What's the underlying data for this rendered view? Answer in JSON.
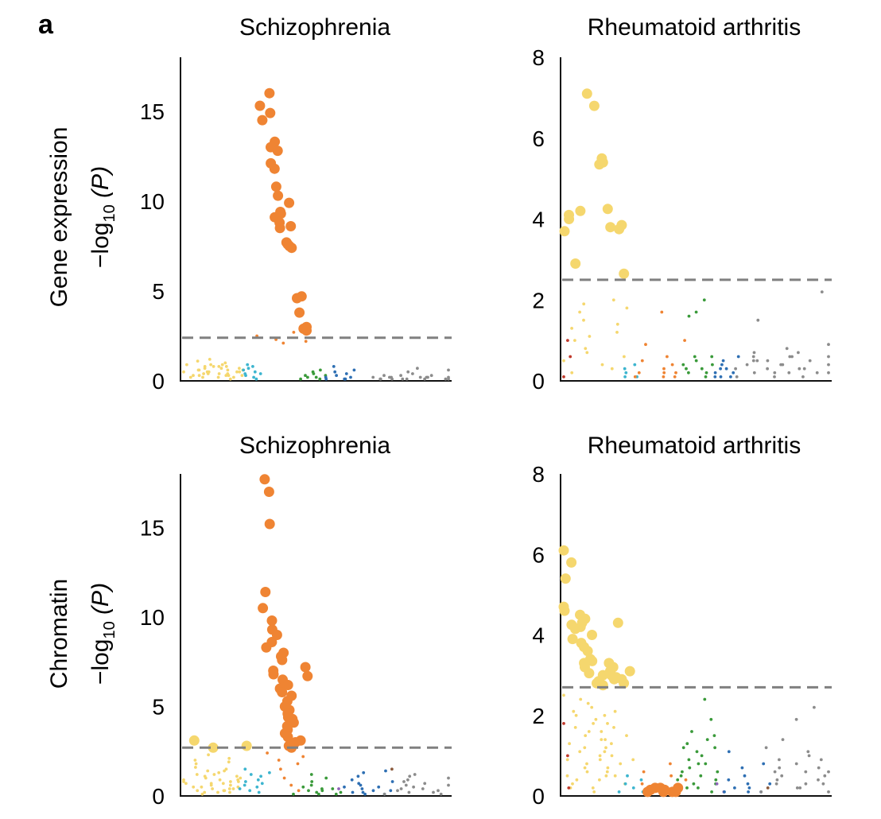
{
  "panel_letter": "a",
  "row_labels": [
    "Gene expression",
    "Chromatin"
  ],
  "ylabel": {
    "prefix": "−log",
    "sub": "10",
    "suffix": " (P)"
  },
  "colors": {
    "yellow": "#f5d76e",
    "orange": "#ef8433",
    "cyan": "#3db5cf",
    "green": "#3a9a3a",
    "blue": "#2e6fb3",
    "gray": "#8c8c8c",
    "red": "#c0392b",
    "purple": "#8e63b8",
    "brown": "#8b5a3c",
    "threshold": "#808080"
  },
  "chart_data": [
    {
      "type": "scatter",
      "title": "Schizophrenia",
      "row": "Gene expression",
      "ylim": [
        0,
        18
      ],
      "yticks": [
        0,
        5,
        10,
        15
      ],
      "threshold": 2.4,
      "series": [
        {
          "name": "yellow-small",
          "color": "yellow",
          "size": "small",
          "x_range": [
            0.01,
            0.22
          ],
          "values": [
            0.2,
            0.5,
            0.3,
            0.8,
            1.1,
            0.6,
            0.9,
            0.4,
            0.7,
            1.2,
            0.5,
            0.3,
            0.8,
            0.6,
            0.9,
            0.2,
            0.4,
            0.7,
            1.0,
            0.3,
            0.5,
            0.8,
            0.6,
            0.4,
            0.2,
            0.9,
            0.7,
            0.5,
            0.3,
            0.1,
            0.6,
            0.8,
            0.4,
            0.2,
            0.5,
            0.3
          ]
        },
        {
          "name": "cyan-small",
          "color": "cyan",
          "size": "small",
          "x_range": [
            0.22,
            0.28
          ],
          "values": [
            0.3,
            0.6,
            0.9,
            0.4,
            0.7,
            0.2,
            0.5,
            0.8,
            0.1,
            0.4
          ]
        },
        {
          "name": "orange-large",
          "color": "orange",
          "size": "large",
          "x_range": [
            0.31,
            0.45
          ],
          "values": [
            16.0,
            15.3,
            14.9,
            14.5,
            13.3,
            13.0,
            12.8,
            12.1,
            11.8,
            10.8,
            10.3,
            9.9,
            9.3,
            9.1,
            9.4,
            8.8,
            8.6,
            8.5,
            7.7,
            7.6,
            7.4,
            7.5,
            4.7,
            4.6,
            3.8,
            3.0,
            2.9,
            2.8
          ]
        },
        {
          "name": "orange-small",
          "color": "orange",
          "size": "small",
          "x_range": [
            0.31,
            0.45
          ],
          "values": [
            2.5,
            2.3,
            2.1,
            2.7,
            2.2
          ]
        },
        {
          "name": "green-small",
          "color": "green",
          "size": "small",
          "x_range": [
            0.45,
            0.53
          ],
          "values": [
            0.1,
            0.3,
            0.5,
            0.2,
            0.4,
            0.6,
            0.1,
            0.2,
            0.3
          ]
        },
        {
          "name": "blue-small",
          "color": "blue",
          "size": "small",
          "x_range": [
            0.53,
            0.64
          ],
          "values": [
            0.1,
            0.2,
            0.5,
            0.3,
            0.8,
            0.1,
            0.2,
            0.4,
            0.1,
            0.6
          ]
        },
        {
          "name": "gray-small",
          "color": "gray",
          "size": "small",
          "x_range": [
            0.72,
            1.0
          ],
          "values": [
            0.1,
            0.2,
            0.3,
            0.1,
            0.2,
            0.5,
            0.1,
            0.2,
            0.3,
            0.7,
            0.1,
            0.2,
            0.1,
            0.3,
            0.2,
            0.1,
            0.4,
            0.2,
            0.1,
            0.6,
            0.2,
            0.1
          ]
        }
      ]
    },
    {
      "type": "scatter",
      "title": "Rheumatoid arthritis",
      "row": "Gene expression",
      "ylim": [
        0,
        8
      ],
      "yticks": [
        0,
        2,
        4,
        6,
        8
      ],
      "threshold": 2.5,
      "series": [
        {
          "name": "yellow-large",
          "color": "yellow",
          "size": "large",
          "x_range": [
            0.01,
            0.22
          ],
          "values": [
            4.1,
            4.2,
            4.0,
            3.7,
            2.9,
            7.1,
            6.8,
            5.35,
            5.4,
            5.5,
            3.8,
            3.85,
            3.75,
            4.25,
            2.65
          ]
        },
        {
          "name": "yellow-small",
          "color": "yellow",
          "size": "small",
          "x_range": [
            0.01,
            0.22
          ],
          "values": [
            0.5,
            1.0,
            1.3,
            0.2,
            0.8,
            1.7,
            1.9,
            1.5,
            1.1,
            0.7,
            0.4,
            1.4,
            2.0,
            0.3,
            0.6,
            1.8,
            1.2
          ]
        },
        {
          "name": "red-small",
          "color": "red",
          "size": "small",
          "x_range": [
            0.0,
            0.03
          ],
          "values": [
            0.1,
            1.0,
            0.6
          ]
        },
        {
          "name": "cyan-small",
          "color": "cyan",
          "size": "small",
          "x_range": [
            0.22,
            0.28
          ],
          "values": [
            0.1,
            0.3,
            0.2,
            0.4,
            0.1
          ]
        },
        {
          "name": "orange-small",
          "color": "orange",
          "size": "small",
          "x_range": [
            0.3,
            0.45
          ],
          "values": [
            0.1,
            0.2,
            0.5,
            0.9,
            1.7,
            0.3,
            0.6,
            0.1,
            0.2,
            0.4,
            1.0,
            0.2,
            0.1
          ]
        },
        {
          "name": "green-small",
          "color": "green",
          "size": "small",
          "x_range": [
            0.45,
            0.56
          ],
          "values": [
            0.2,
            0.4,
            0.6,
            0.3,
            1.6,
            1.7,
            2.0,
            0.5,
            0.1,
            0.3,
            0.6,
            0.2,
            0.4
          ]
        },
        {
          "name": "blue-small",
          "color": "blue",
          "size": "small",
          "x_range": [
            0.56,
            0.66
          ],
          "values": [
            0.1,
            0.2,
            0.3,
            0.5,
            0.1,
            0.4,
            0.2,
            0.3,
            0.1,
            0.6
          ]
        },
        {
          "name": "gray-small",
          "color": "gray",
          "size": "small",
          "x_range": [
            0.66,
            1.0
          ],
          "values": [
            0.1,
            0.3,
            0.5,
            0.6,
            0.2,
            0.4,
            0.7,
            0.5,
            0.3,
            1.5,
            0.2,
            0.6,
            0.4,
            0.1,
            0.3,
            0.2,
            0.5,
            0.8,
            0.6,
            0.2,
            2.2,
            0.4,
            0.1,
            0.3,
            0.7,
            0.9,
            0.5,
            0.2,
            0.6,
            0.4
          ]
        }
      ]
    },
    {
      "type": "scatter",
      "title": "Schizophrenia",
      "row": "Chromatin",
      "ylim": [
        0,
        18
      ],
      "yticks": [
        0,
        5,
        10,
        15
      ],
      "threshold": 2.7,
      "series": [
        {
          "name": "yellow-large",
          "color": "yellow",
          "size": "large",
          "x_range": [
            0.01,
            0.22
          ],
          "values": [
            3.1,
            2.7,
            2.8
          ]
        },
        {
          "name": "yellow-small",
          "color": "yellow",
          "size": "small",
          "x_range": [
            0.01,
            0.22
          ],
          "values": [
            0.3,
            0.8,
            1.2,
            0.5,
            1.6,
            2.0,
            0.9,
            1.4,
            0.2,
            0.7,
            1.1,
            1.8,
            0.4,
            0.6,
            1.3,
            2.3,
            0.9,
            0.1,
            0.5,
            1.0,
            1.5,
            0.3,
            0.7,
            1.2,
            0.8,
            0.4,
            1.9,
            0.6,
            0.2,
            1.1,
            0.5,
            0.9,
            1.4,
            0.3,
            0.7,
            2.1,
            0.4,
            0.8,
            1.0,
            0.2
          ]
        },
        {
          "name": "cyan-small",
          "color": "cyan",
          "size": "small",
          "x_range": [
            0.22,
            0.31
          ],
          "values": [
            0.4,
            0.8,
            1.2,
            0.6,
            1.5,
            0.3,
            0.9,
            0.5,
            1.1,
            0.7,
            0.2,
            1.3
          ]
        },
        {
          "name": "orange-large",
          "color": "orange",
          "size": "large",
          "x_range": [
            0.31,
            0.44
          ],
          "values": [
            17.7,
            17.0,
            15.2,
            11.4,
            10.5,
            9.8,
            9.3,
            9.0,
            8.6,
            8.3,
            8.0,
            7.8,
            7.6,
            7.0,
            6.8,
            6.5,
            6.2,
            6.0,
            5.8,
            5.6,
            5.3,
            5.0,
            4.8,
            4.6,
            4.4,
            4.3,
            4.1,
            3.9,
            3.7,
            3.5,
            3.3,
            3.1,
            3.0,
            2.9,
            2.8,
            2.7,
            6.7,
            7.2
          ]
        },
        {
          "name": "orange-small",
          "color": "orange",
          "size": "small",
          "x_range": [
            0.31,
            0.44
          ],
          "values": [
            2.4,
            2.0,
            1.5,
            1.0,
            0.6,
            0.3,
            1.8,
            2.2
          ]
        },
        {
          "name": "green-small",
          "color": "green",
          "size": "small",
          "x_range": [
            0.44,
            0.58
          ],
          "values": [
            0.1,
            0.3,
            0.5,
            0.8,
            1.2,
            0.4,
            0.2,
            0.6,
            1.0,
            0.1,
            0.3,
            0.2,
            0.4,
            0.1
          ]
        },
        {
          "name": "purple-small",
          "color": "purple",
          "size": "small",
          "x_range": [
            0.58,
            0.6
          ],
          "values": [
            0.4
          ]
        },
        {
          "name": "blue-small",
          "color": "blue",
          "size": "small",
          "x_range": [
            0.6,
            0.78
          ],
          "values": [
            0.2,
            0.5,
            0.9,
            1.3,
            0.4,
            0.1,
            0.7,
            1.1,
            0.3,
            0.6,
            0.2,
            1.4,
            0.5,
            0.8,
            0.3,
            0.1
          ]
        },
        {
          "name": "brown-small",
          "color": "brown",
          "size": "small",
          "x_range": [
            0.78,
            0.8
          ],
          "values": [
            1.5
          ]
        },
        {
          "name": "gray-small",
          "color": "gray",
          "size": "small",
          "x_range": [
            0.8,
            1.0
          ],
          "values": [
            0.1,
            0.4,
            0.8,
            1.1,
            0.3,
            0.6,
            0.2,
            0.9,
            0.5,
            1.2,
            0.4,
            0.1,
            0.7,
            0.3,
            1.0,
            0.2,
            0.6
          ]
        }
      ]
    },
    {
      "type": "scatter",
      "title": "Rheumatoid arthritis",
      "row": "Chromatin",
      "ylim": [
        0,
        8
      ],
      "yticks": [
        0,
        2,
        4,
        6,
        8
      ],
      "threshold": 2.7,
      "series": [
        {
          "name": "yellow-large",
          "color": "yellow",
          "size": "large",
          "x_range": [
            0.01,
            0.22
          ],
          "values": [
            5.8,
            5.4,
            6.1,
            4.7,
            4.6,
            4.5,
            4.4,
            4.3,
            4.25,
            4.2,
            4.15,
            4.0,
            3.9,
            3.8,
            3.7,
            3.6,
            3.4,
            3.35,
            3.3,
            3.2,
            3.1,
            3.05,
            3.0,
            2.95,
            2.9,
            2.85,
            2.8,
            2.75,
            2.8,
            2.9,
            3.0,
            3.1,
            3.2,
            3.3,
            4.3
          ]
        },
        {
          "name": "yellow-small",
          "color": "yellow",
          "size": "small",
          "x_range": [
            0.01,
            0.22
          ],
          "values": [
            0.2,
            0.5,
            0.9,
            1.3,
            1.7,
            2.1,
            2.5,
            0.4,
            0.8,
            1.2,
            1.6,
            2.0,
            2.4,
            0.3,
            0.7,
            1.1,
            1.5,
            1.9,
            2.3,
            0.6,
            1.0,
            1.4,
            1.8,
            2.2,
            0.1,
            0.5,
            0.9,
            1.3,
            1.7,
            2.1,
            0.2,
            0.6,
            1.0,
            1.4,
            1.8,
            0.4,
            0.8,
            1.2,
            1.6,
            2.0,
            0.3,
            0.7,
            1.1,
            1.5,
            0.5,
            0.9
          ]
        },
        {
          "name": "red-small",
          "color": "red",
          "size": "small",
          "x_range": [
            0.0,
            0.02
          ],
          "values": [
            1.8,
            1.0,
            0.2
          ]
        },
        {
          "name": "cyan-small",
          "color": "cyan",
          "size": "small",
          "x_range": [
            0.22,
            0.3
          ],
          "values": [
            0.1,
            0.3,
            0.5,
            0.2,
            0.4,
            0.1
          ]
        },
        {
          "name": "orange-large",
          "color": "orange",
          "size": "large",
          "x_range": [
            0.3,
            0.44
          ],
          "values": [
            0.1,
            0.15,
            0.2,
            0.1,
            0.15,
            0.2,
            0.1,
            0.15,
            0.2,
            0.1
          ]
        },
        {
          "name": "orange-small",
          "color": "orange",
          "size": "small",
          "x_range": [
            0.3,
            0.44
          ],
          "values": [
            0.3,
            0.6,
            0.8,
            0.5,
            0.4
          ]
        },
        {
          "name": "green-small",
          "color": "green",
          "size": "small",
          "x_range": [
            0.44,
            0.6
          ],
          "values": [
            0.2,
            0.5,
            0.9,
            1.3,
            0.4,
            0.8,
            1.2,
            0.6,
            1.6,
            0.3,
            0.7,
            1.1,
            0.5,
            2.4,
            1.9,
            1.4,
            0.2,
            0.6,
            1.0,
            0.4,
            0.8,
            1.5,
            0.3,
            0.1,
            1.2
          ]
        },
        {
          "name": "purple-small",
          "color": "purple",
          "size": "small",
          "x_range": [
            0.58,
            0.6
          ],
          "values": [
            0.3,
            0.1
          ]
        },
        {
          "name": "blue-small",
          "color": "blue",
          "size": "small",
          "x_range": [
            0.6,
            0.76
          ],
          "values": [
            0.1,
            0.2,
            0.4,
            0.7,
            1.1,
            0.3,
            0.5,
            0.1,
            0.2,
            0.8,
            0.3,
            0.1
          ]
        },
        {
          "name": "brown-small",
          "color": "brown",
          "size": "small",
          "x_range": [
            0.76,
            0.78
          ],
          "values": [
            0.2
          ]
        },
        {
          "name": "gray-small",
          "color": "gray",
          "size": "small",
          "x_range": [
            0.78,
            1.0
          ],
          "values": [
            0.1,
            0.3,
            0.6,
            0.9,
            1.2,
            0.4,
            0.7,
            0.2,
            0.5,
            1.4,
            0.8,
            0.3,
            1.0,
            0.6,
            2.2,
            1.9,
            0.4,
            0.2,
            0.7,
            0.5,
            1.1,
            0.3,
            0.9,
            0.1,
            0.6
          ]
        }
      ]
    }
  ]
}
